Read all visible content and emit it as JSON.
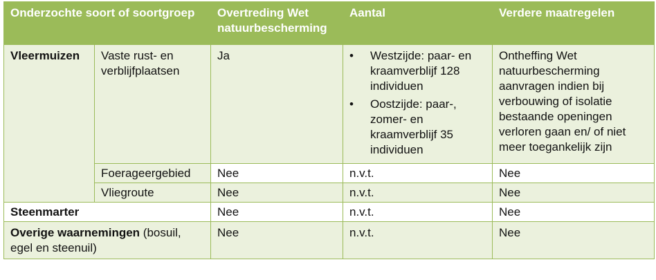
{
  "headers": {
    "species": "Onderzochte soort of soortgroep",
    "violation": "Overtreding Wet natuurbescherming",
    "count": "Aantal",
    "measures": "Verdere maatregelen"
  },
  "bats": {
    "group": "Vleermuizen",
    "rows": [
      {
        "function": "Vaste rust- en verblijfplaatsen",
        "violation": "Ja",
        "counts": [
          "Westzijde: paar- en kraamverblijf 128 individuen",
          "Oostzijde: paar-, zomer- en kraamverblijf 35 individuen"
        ],
        "measures": "Ontheffing Wet natuurbescherming aanvragen indien bij verbouwing of isolatie bestaande openingen verloren gaan en/ of niet meer toegankelijk zijn"
      },
      {
        "function": "Foerageergebied",
        "violation": "Nee",
        "count": "n.v.t.",
        "measures": "Nee"
      },
      {
        "function": "Vliegroute",
        "violation": "Nee",
        "count": "n.v.t.",
        "measures": "Nee"
      }
    ]
  },
  "marten": {
    "group": "Steenmarter",
    "violation": "Nee",
    "count": "n.v.t.",
    "measures": "Nee"
  },
  "other": {
    "group": "Overige waarnemingen",
    "note": " (bosuil, egel en steenuil)",
    "violation": "Nee",
    "count": "n.v.t.",
    "measures": "Nee"
  },
  "bullet_symbol": "•"
}
